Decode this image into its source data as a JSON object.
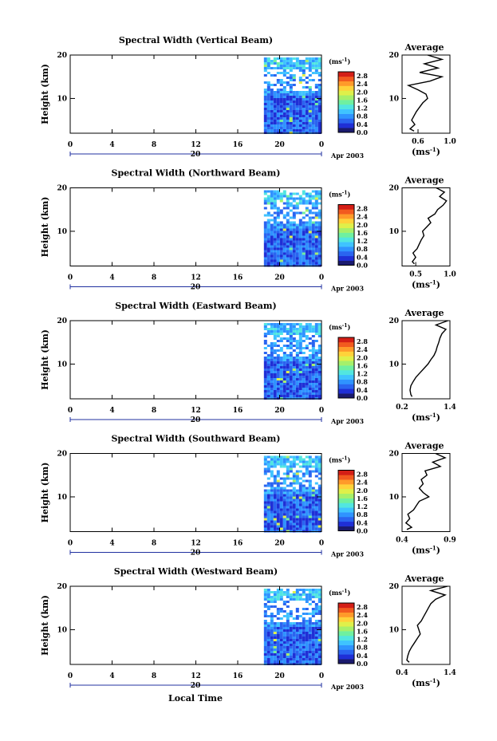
{
  "figure": {
    "xlabel": "Local Time",
    "date_label": "Apr 2003",
    "day_label": "20",
    "unit_label": "(ms",
    "unit_exp": "-1"
  },
  "colors": {
    "scale": [
      "#1a1a6e",
      "#1f2fd6",
      "#2a64f0",
      "#2f93ff",
      "#3fc3ff",
      "#52e6e0",
      "#6ff0a0",
      "#a6f06a",
      "#dff04a",
      "#ffd23a",
      "#ff9a2a",
      "#f25a1f",
      "#d41e16"
    ],
    "line": "#000000"
  },
  "chart_data": [
    {
      "type": "heatmap",
      "title": "Spectral Width (Vertical Beam)",
      "xlabel": "Local Time",
      "ylabel": "Height (km)",
      "x_ticks": [
        "0",
        "4",
        "8",
        "12",
        "16",
        "20",
        "0"
      ],
      "xlim": [
        0,
        24
      ],
      "ylim": [
        2,
        20
      ],
      "y_ticks": [
        "10",
        "20"
      ],
      "data_start_hour": 18.5,
      "colorbar_label": "(ms-1)",
      "colorbar_ticks": [
        "0.0",
        "0.4",
        "0.8",
        "1.2",
        "1.6",
        "2.0",
        "2.4",
        "2.8"
      ],
      "colorbar_range": [
        0,
        3.0
      ],
      "profile": {
        "title": "Average",
        "xlabel": "(ms-1)",
        "x_ticks": [
          "0.6",
          "1.0"
        ],
        "xlim": [
          0.4,
          1.0
        ],
        "y_ticks": [
          "10",
          "20"
        ],
        "ylim": [
          2,
          20
        ],
        "heights": [
          2.5,
          3,
          4,
          5,
          6,
          7,
          8,
          9,
          10,
          11,
          12,
          13,
          14,
          15,
          16,
          17,
          18,
          19,
          20
        ],
        "values": [
          0.55,
          0.5,
          0.56,
          0.52,
          0.55,
          0.58,
          0.62,
          0.66,
          0.72,
          0.7,
          0.6,
          0.48,
          0.75,
          0.9,
          0.62,
          0.85,
          0.68,
          0.9,
          0.72
        ]
      }
    },
    {
      "type": "heatmap",
      "title": "Spectral Width (Northward Beam)",
      "xlabel": "Local Time",
      "ylabel": "Height (km)",
      "x_ticks": [
        "0",
        "4",
        "8",
        "12",
        "16",
        "20",
        "0"
      ],
      "xlim": [
        0,
        24
      ],
      "ylim": [
        2,
        20
      ],
      "y_ticks": [
        "10",
        "20"
      ],
      "data_start_hour": 18.5,
      "colorbar_label": "(ms-1)",
      "colorbar_ticks": [
        "0.0",
        "0.4",
        "0.8",
        "1.2",
        "1.6",
        "2.0",
        "2.4",
        "2.8"
      ],
      "colorbar_range": [
        0,
        3.0
      ],
      "profile": {
        "title": "Average",
        "xlabel": "(ms-1)",
        "x_ticks": [
          "0.5",
          "1.0"
        ],
        "xlim": [
          0.3,
          1.0
        ],
        "y_ticks": [
          "10",
          "20"
        ],
        "ylim": [
          2,
          20
        ],
        "heights": [
          2.5,
          3,
          4,
          5,
          6,
          7,
          8,
          9,
          10,
          11,
          12,
          13,
          14,
          15,
          16,
          17,
          18,
          19,
          20
        ],
        "values": [
          0.48,
          0.45,
          0.5,
          0.46,
          0.52,
          0.55,
          0.58,
          0.62,
          0.6,
          0.66,
          0.72,
          0.68,
          0.78,
          0.82,
          0.9,
          0.95,
          0.85,
          0.92,
          0.8
        ]
      }
    },
    {
      "type": "heatmap",
      "title": "Spectral Width (Eastward Beam)",
      "xlabel": "Local Time",
      "ylabel": "Height (km)",
      "x_ticks": [
        "0",
        "4",
        "8",
        "12",
        "16",
        "20",
        "0"
      ],
      "xlim": [
        0,
        24
      ],
      "ylim": [
        2,
        20
      ],
      "y_ticks": [
        "10",
        "20"
      ],
      "data_start_hour": 18.5,
      "colorbar_label": "(ms-1)",
      "colorbar_ticks": [
        "0.0",
        "0.4",
        "0.8",
        "1.2",
        "1.6",
        "2.0",
        "2.4",
        "2.8"
      ],
      "colorbar_range": [
        0,
        3.0
      ],
      "profile": {
        "title": "Average",
        "xlabel": "(ms-1)",
        "x_ticks": [
          "0.2",
          "1.4"
        ],
        "xlim": [
          0.2,
          1.4
        ],
        "y_ticks": [
          "10",
          "20"
        ],
        "ylim": [
          2,
          20
        ],
        "heights": [
          2.5,
          3,
          4,
          5,
          6,
          7,
          8,
          9,
          10,
          11,
          12,
          13,
          14,
          15,
          16,
          17,
          18,
          19,
          20
        ],
        "values": [
          0.45,
          0.42,
          0.4,
          0.42,
          0.48,
          0.55,
          0.65,
          0.75,
          0.85,
          0.92,
          1.0,
          1.05,
          1.08,
          1.12,
          1.15,
          1.2,
          1.3,
          1.05,
          1.35
        ]
      }
    },
    {
      "type": "heatmap",
      "title": "Spectral Width (Southward Beam)",
      "xlabel": "Local Time",
      "ylabel": "Height (km)",
      "x_ticks": [
        "0",
        "4",
        "8",
        "12",
        "16",
        "20",
        "0"
      ],
      "xlim": [
        0,
        24
      ],
      "ylim": [
        2,
        20
      ],
      "y_ticks": [
        "10",
        "20"
      ],
      "data_start_hour": 18.5,
      "colorbar_label": "(ms-1)",
      "colorbar_ticks": [
        "0.0",
        "0.4",
        "0.8",
        "1.2",
        "1.6",
        "2.0",
        "2.4",
        "2.8"
      ],
      "colorbar_range": [
        0,
        3.0
      ],
      "profile": {
        "title": "Average",
        "xlabel": "(ms-1)",
        "x_ticks": [
          "0.4",
          "0.9"
        ],
        "xlim": [
          0.4,
          0.9
        ],
        "y_ticks": [
          "10",
          "20"
        ],
        "ylim": [
          2,
          20
        ],
        "heights": [
          2.5,
          3,
          4,
          5,
          6,
          7,
          8,
          9,
          10,
          11,
          12,
          13,
          14,
          15,
          16,
          17,
          18,
          19,
          20
        ],
        "values": [
          0.45,
          0.5,
          0.44,
          0.48,
          0.46,
          0.52,
          0.55,
          0.58,
          0.68,
          0.62,
          0.58,
          0.62,
          0.6,
          0.66,
          0.64,
          0.8,
          0.72,
          0.85,
          0.75
        ]
      }
    },
    {
      "type": "heatmap",
      "title": "Spectral Width (Westward Beam)",
      "xlabel": "Local Time",
      "ylabel": "Height (km)",
      "x_ticks": [
        "0",
        "4",
        "8",
        "12",
        "16",
        "20",
        "0"
      ],
      "xlim": [
        0,
        24
      ],
      "ylim": [
        2,
        20
      ],
      "y_ticks": [
        "10",
        "20"
      ],
      "data_start_hour": 18.5,
      "colorbar_label": "(ms-1)",
      "colorbar_ticks": [
        "0.0",
        "0.4",
        "0.8",
        "1.2",
        "1.6",
        "2.0",
        "2.4",
        "2.8"
      ],
      "colorbar_range": [
        0,
        3.0
      ],
      "profile": {
        "title": "Average",
        "xlabel": "(ms-1)",
        "x_ticks": [
          "0.4",
          "1.4"
        ],
        "xlim": [
          0.4,
          1.4
        ],
        "y_ticks": [
          "10",
          "20"
        ],
        "ylim": [
          2,
          20
        ],
        "heights": [
          2.5,
          3,
          4,
          5,
          6,
          7,
          8,
          9,
          10,
          11,
          12,
          13,
          14,
          15,
          16,
          17,
          18,
          19,
          20
        ],
        "values": [
          0.55,
          0.5,
          0.52,
          0.55,
          0.6,
          0.66,
          0.72,
          0.78,
          0.75,
          0.72,
          0.8,
          0.85,
          0.9,
          0.95,
          1.0,
          1.1,
          1.3,
          1.0,
          1.35
        ]
      }
    }
  ]
}
